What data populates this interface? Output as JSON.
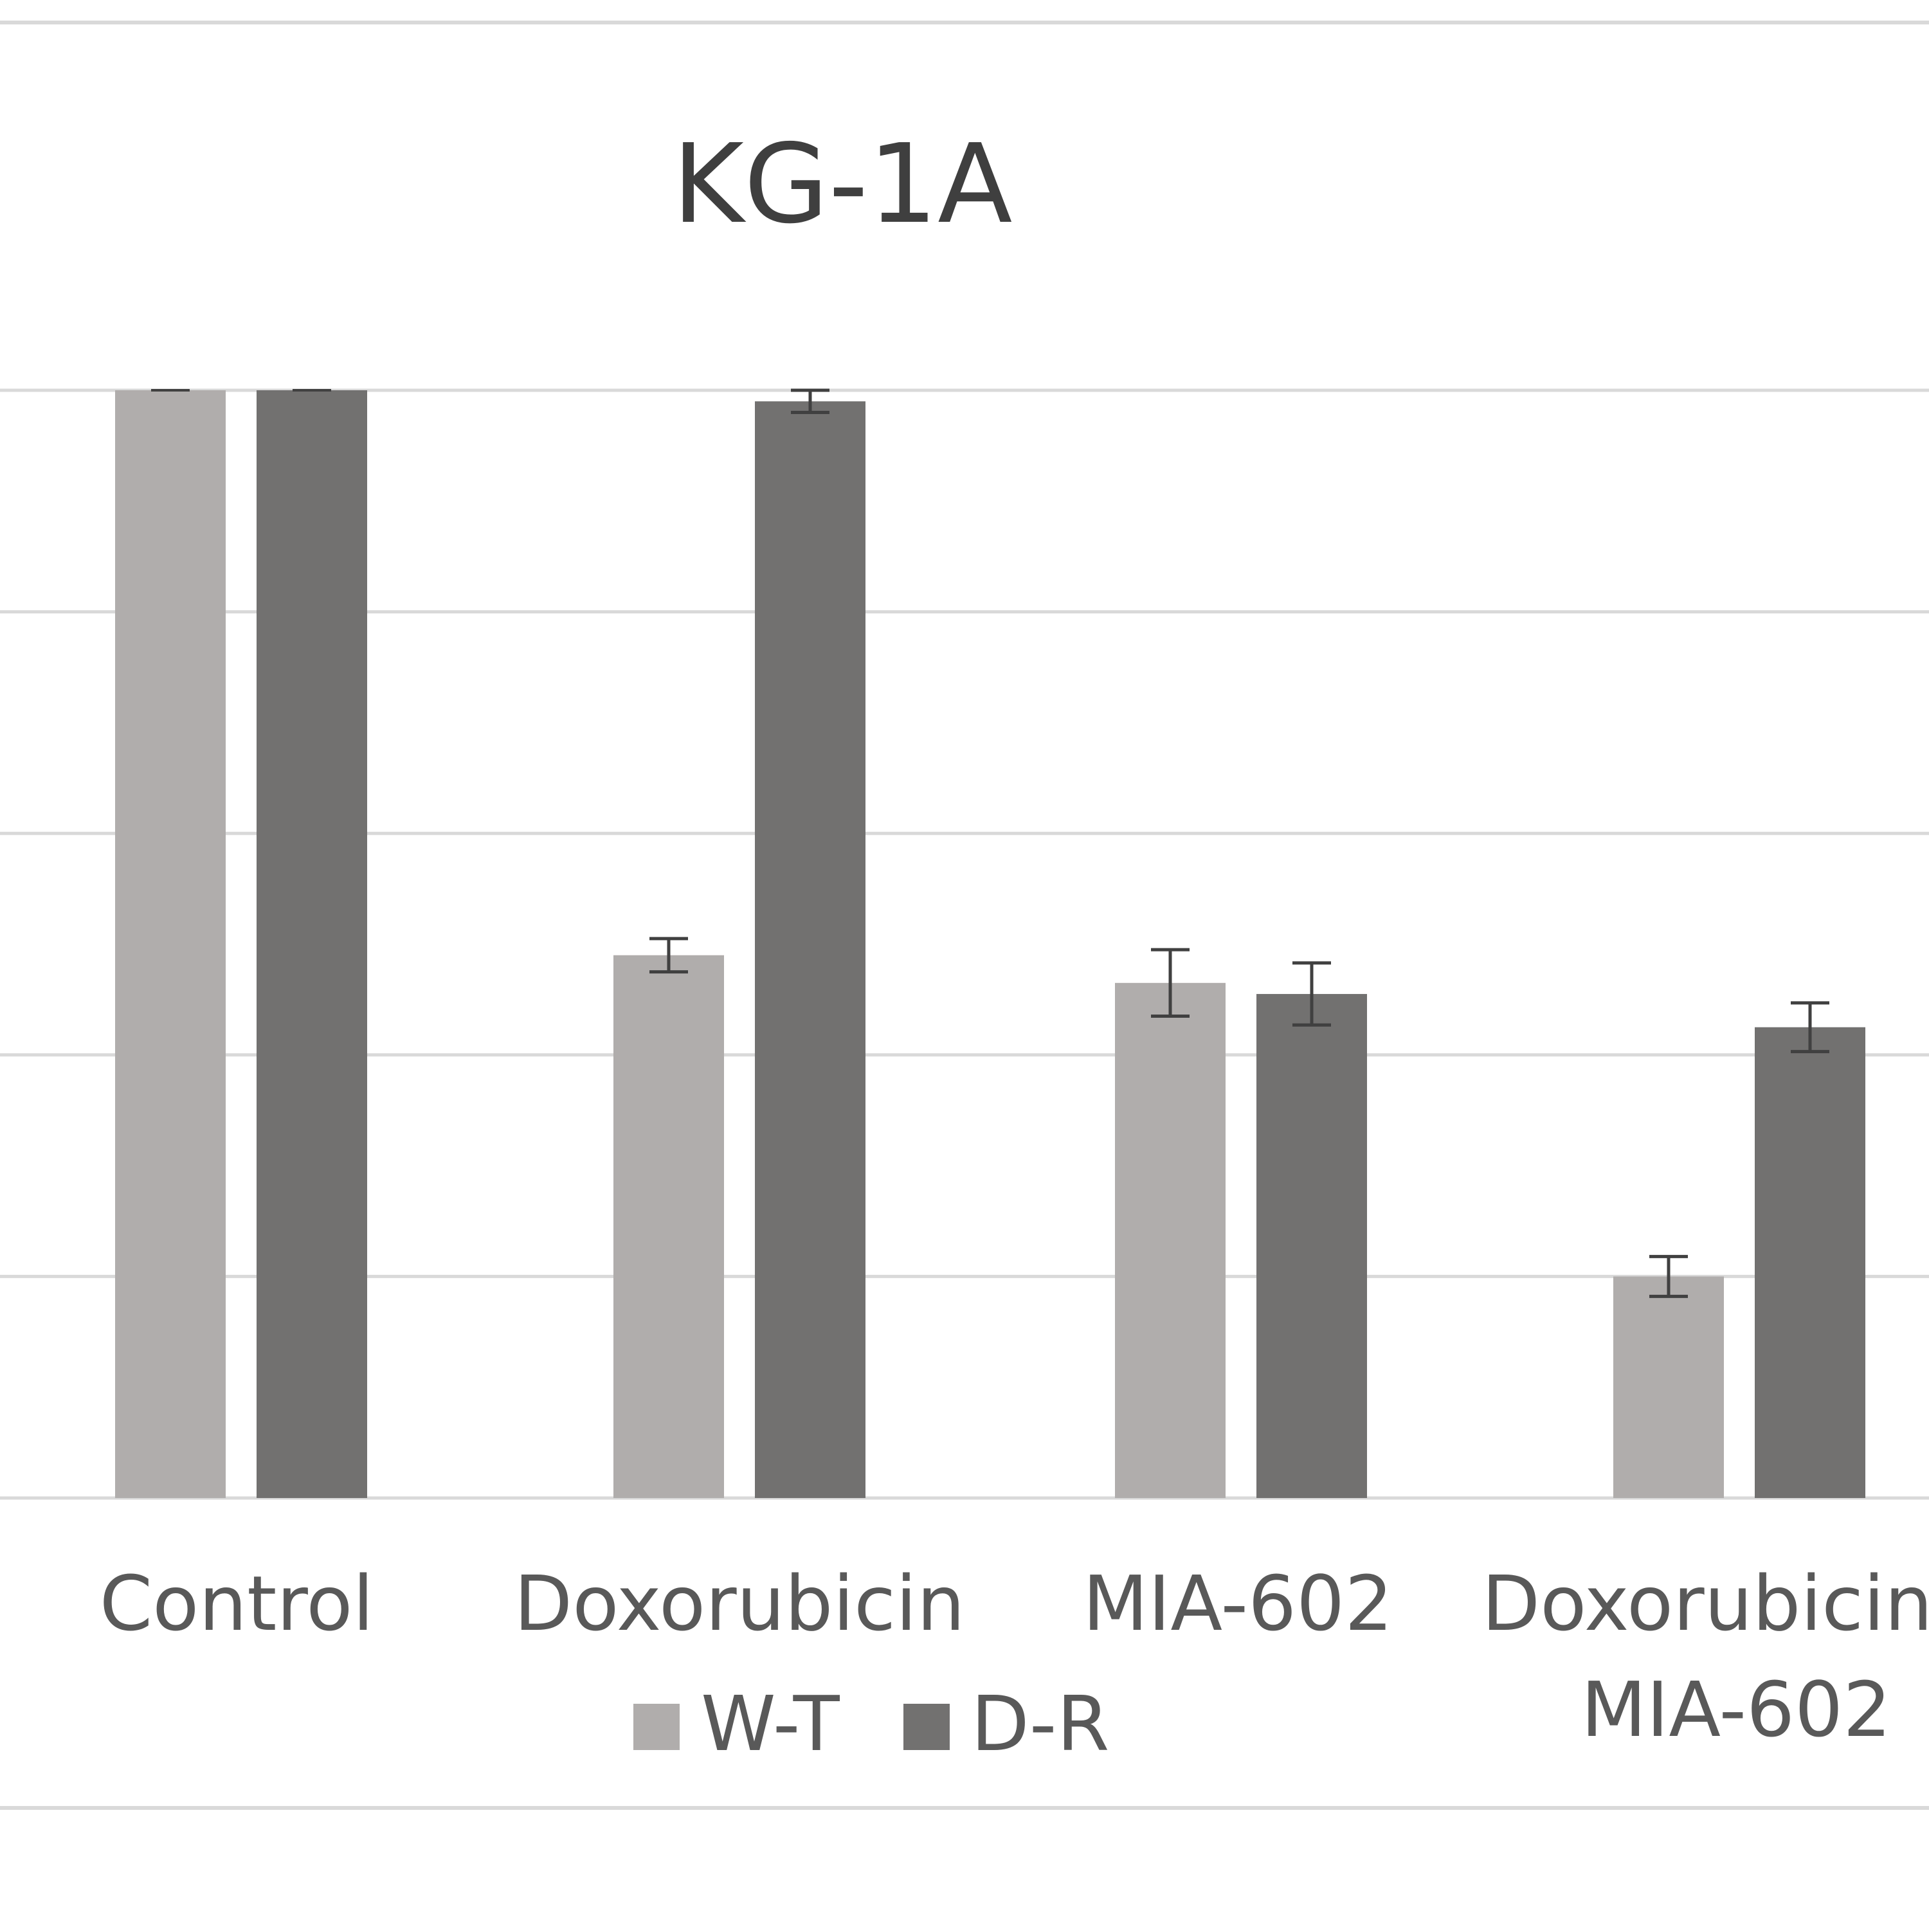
{
  "chart_data": {
    "type": "bar",
    "title": "KG-1A",
    "xlabel": "",
    "ylabel": "",
    "ylim": [
      0,
      100
    ],
    "grid": true,
    "legend_position": "bottom",
    "categories": [
      "Control",
      "Doxorubicin",
      "MIA-602",
      "Doxorubicin MIA-602"
    ],
    "category_lines": [
      [
        "Control"
      ],
      [
        "Doxorubicin"
      ],
      [
        "MIA-602"
      ],
      [
        "Doxorubicin",
        "MIA-602"
      ]
    ],
    "series": [
      {
        "name": "W-T",
        "color": "#b0adac",
        "values": [
          100,
          49,
          46.5,
          20
        ],
        "errors": [
          0,
          1.5,
          3,
          1.8
        ]
      },
      {
        "name": "D-R",
        "color": "#727170",
        "values": [
          100,
          99,
          45.5,
          42.5
        ],
        "errors": [
          0,
          1,
          2.8,
          2.2
        ]
      }
    ]
  }
}
